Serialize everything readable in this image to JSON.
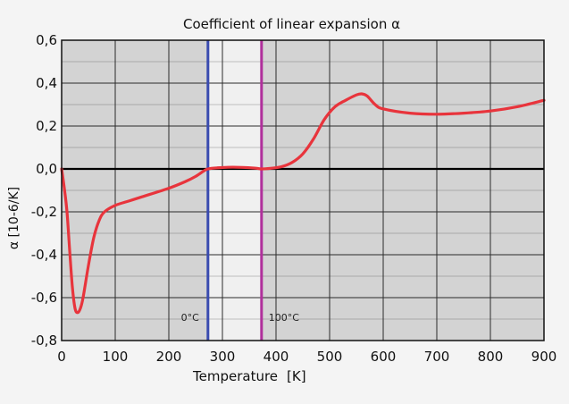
{
  "chart_data": {
    "type": "line",
    "title": "Coefficient of linear expansion  α",
    "xlabel": "Temperature",
    "xlabel_unit": "[K]",
    "ylabel": "α [10-6/K]",
    "xlim": [
      0,
      900
    ],
    "ylim": [
      -0.8,
      0.6
    ],
    "x_ticks": [
      0,
      100,
      200,
      300,
      400,
      500,
      600,
      700,
      800,
      900
    ],
    "x_tick_labels": [
      "0",
      "100",
      "200",
      "300",
      "400",
      "500",
      "600",
      "700",
      "800",
      "900"
    ],
    "y_ticks": [
      -0.8,
      -0.6,
      -0.4,
      -0.2,
      0.0,
      0.2,
      0.4,
      0.6
    ],
    "y_tick_labels": [
      "-0,8",
      "-0,6",
      "-0,4",
      "-0,2",
      "0,0",
      "0,2",
      "0,4",
      "0,6"
    ],
    "grid": true,
    "colors": {
      "plot_background": "#d3d3d3",
      "band_fill": "#f0f0f0",
      "curve": "#e8343c",
      "zero_line": "#000000",
      "marker_0c": "#3a4bb0",
      "marker_100c": "#b0309c"
    },
    "band": {
      "x_start": 273,
      "x_end": 373
    },
    "vertical_markers": [
      {
        "x": 273,
        "label": "0°C",
        "color": "#3a4bb0"
      },
      {
        "x": 373,
        "label": "100°C",
        "color": "#b0309c"
      }
    ],
    "series": [
      {
        "x": [
          0,
          5,
          10,
          15,
          20,
          25,
          30,
          35,
          40,
          50,
          60,
          70,
          80,
          100,
          125,
          150,
          200,
          230,
          250,
          265,
          273,
          290,
          320,
          360,
          373,
          390,
          410,
          430,
          450,
          470,
          490,
          510,
          530,
          550,
          560,
          570,
          585,
          600,
          650,
          700,
          750,
          800,
          850,
          900
        ],
        "y": [
          0.0,
          -0.09,
          -0.2,
          -0.38,
          -0.55,
          -0.65,
          -0.67,
          -0.65,
          -0.6,
          -0.45,
          -0.32,
          -0.24,
          -0.2,
          -0.17,
          -0.15,
          -0.13,
          -0.09,
          -0.06,
          -0.035,
          -0.01,
          0.0,
          0.005,
          0.008,
          0.004,
          0.0,
          0.003,
          0.01,
          0.03,
          0.07,
          0.14,
          0.23,
          0.29,
          0.32,
          0.345,
          0.35,
          0.34,
          0.3,
          0.28,
          0.26,
          0.255,
          0.26,
          0.27,
          0.29,
          0.32
        ]
      }
    ]
  }
}
